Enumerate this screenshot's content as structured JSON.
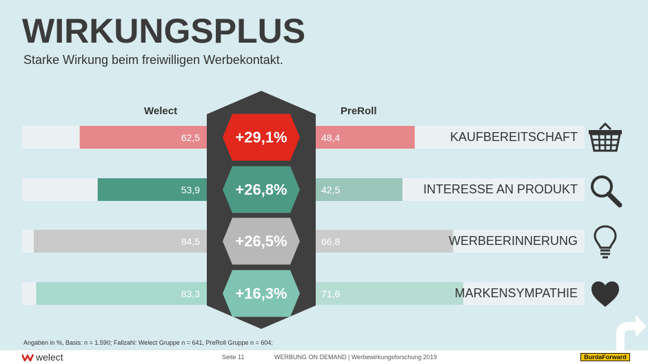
{
  "header": {
    "title": "WIRKUNGSPLUS",
    "subtitle": "Starke Wirkung beim freiwilligen Werbekontakt."
  },
  "chart_data": {
    "type": "bar",
    "series": [
      {
        "name": "Welect",
        "values": [
          62.5,
          53.9,
          84.5,
          83.3
        ]
      },
      {
        "name": "PreRoll",
        "values": [
          48.4,
          42.5,
          66.8,
          71.6
        ]
      }
    ],
    "categories": [
      "KAUFBEREITSCHAFT",
      "INTERESSE AN PRODUKT",
      "WERBEERINNERUNG",
      "MARKENSYMPATHIE"
    ],
    "value_labels_welect": [
      "62,5",
      "53,9",
      "84,5",
      "83,3"
    ],
    "value_labels_preroll": [
      "48,4",
      "42,5",
      "66,8",
      "71,6"
    ],
    "differences": [
      "+29,1%",
      "+26,8%",
      "+26,5%",
      "+16,3%"
    ],
    "xlim": [
      0,
      100
    ],
    "colors": {
      "welect": [
        "#e6878c",
        "#4c9a84",
        "#c9c9c9",
        "#a7d9cc"
      ],
      "preroll": [
        "#e6878c",
        "#9ac5b9",
        "#cbcbcb",
        "#b7ddd3"
      ],
      "hexagon": [
        "#e2271c",
        "#4c9a84",
        "#b8b8b8",
        "#7fc4b2"
      ],
      "track": "#ebf1f3",
      "center_band": "#3f3f3f"
    },
    "icons": [
      "basket-icon",
      "magnifier-icon",
      "lightbulb-icon",
      "heart-icon"
    ]
  },
  "footer": {
    "footnote": "Angaben in %, Basis: n = 1.590; Fallzahl: Welect Gruppe n = 641, PreRoll Gruppe n = 604;",
    "brand": "welect",
    "page": "Seite 11",
    "text": "WERBUNG ON DEMAND | Werbewirkungsforschung 2019",
    "partner": "BurdaForward"
  }
}
